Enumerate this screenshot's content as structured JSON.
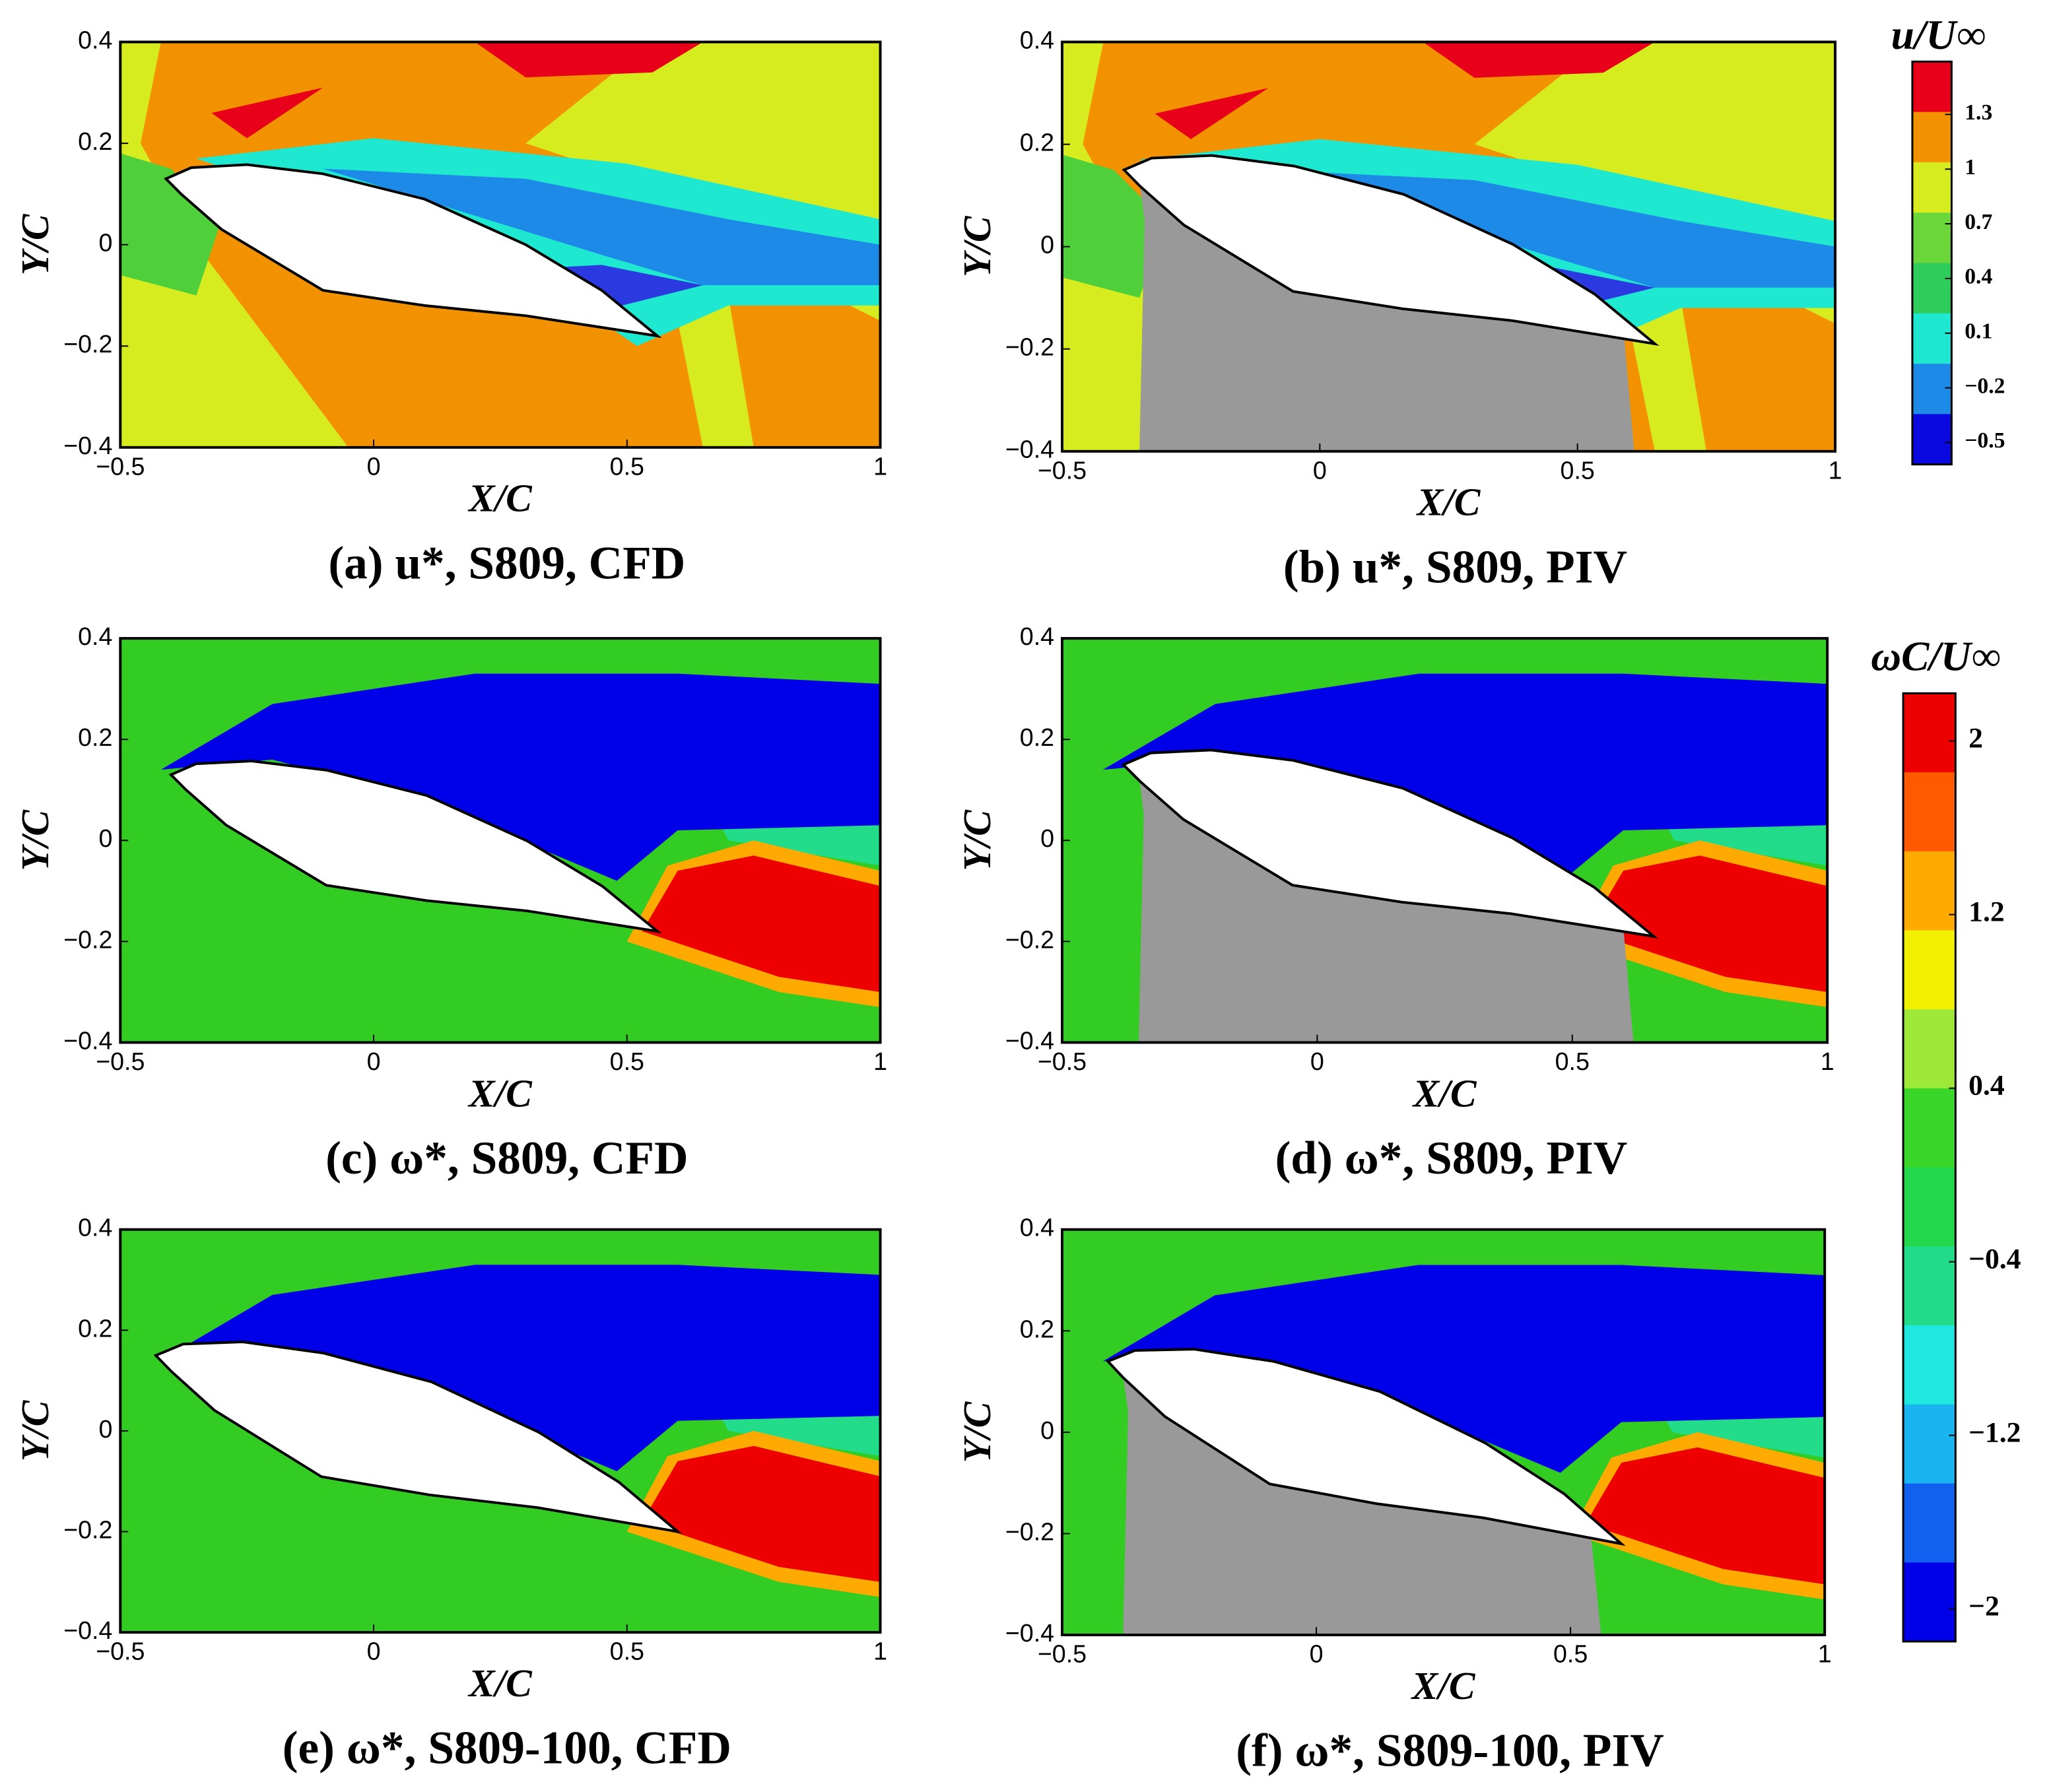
{
  "chart_data": [
    {
      "type": "contour",
      "title": "(a) u*, S809, CFD",
      "xlabel": "X/C",
      "ylabel": "Y/C",
      "xlim": [
        -0.5,
        1
      ],
      "ylim": [
        -0.4,
        0.4
      ],
      "xticks": [
        {
          "value": -0.5,
          "label": "−0.5"
        },
        0,
        0.5,
        1
      ],
      "yticks": [
        {
          "value": -0.4,
          "label": "−0.4"
        },
        {
          "value": -0.2,
          "label": "−0.2"
        },
        0,
        0.2,
        0.4
      ]
    },
    {
      "type": "contour",
      "title": "(b) u*, S809, PIV",
      "xlabel": "X/C",
      "ylabel": "Y/C",
      "xlim": [
        -0.5,
        1
      ],
      "ylim": [
        -0.4,
        0.4
      ],
      "xticks": [
        {
          "value": -0.5,
          "label": "−0.5"
        },
        0,
        0.5,
        1
      ],
      "yticks": [
        {
          "value": -0.4,
          "label": "−0.4"
        },
        {
          "value": -0.2,
          "label": "−0.2"
        },
        0,
        0.2,
        0.4
      ]
    },
    {
      "type": "contour",
      "title": "(c) ω*, S809, CFD",
      "xlabel": "X/C",
      "ylabel": "Y/C",
      "xlim": [
        -0.5,
        1
      ],
      "ylim": [
        -0.4,
        0.4
      ],
      "xticks": [
        {
          "value": -0.5,
          "label": "−0.5"
        },
        0,
        0.5,
        1
      ],
      "yticks": [
        {
          "value": -0.4,
          "label": "−0.4"
        },
        {
          "value": -0.2,
          "label": "−0.2"
        },
        0,
        0.2,
        0.4
      ]
    },
    {
      "type": "contour",
      "title": "(d) ω*, S809, PIV",
      "xlabel": "X/C",
      "ylabel": "Y/C",
      "xlim": [
        -0.5,
        1
      ],
      "ylim": [
        -0.4,
        0.4
      ],
      "xticks": [
        {
          "value": -0.5,
          "label": "−0.5"
        },
        0,
        0.5,
        1
      ],
      "yticks": [
        {
          "value": -0.4,
          "label": "−0.4"
        },
        {
          "value": -0.2,
          "label": "−0.2"
        },
        0,
        0.2,
        0.4
      ]
    },
    {
      "type": "contour",
      "title": "(e) ω*, S809-100, CFD",
      "xlabel": "X/C",
      "ylabel": "Y/C",
      "xlim": [
        -0.5,
        1
      ],
      "ylim": [
        -0.4,
        0.4
      ],
      "xticks": [
        {
          "value": -0.5,
          "label": "−0.5"
        },
        0,
        0.5,
        1
      ],
      "yticks": [
        {
          "value": -0.4,
          "label": "−0.4"
        },
        {
          "value": -0.2,
          "label": "−0.2"
        },
        0,
        0.2,
        0.4
      ]
    },
    {
      "type": "contour",
      "title": "(f) ω*, S809-100, PIV",
      "xlabel": "X/C",
      "ylabel": "Y/C",
      "xlim": [
        -0.5,
        1
      ],
      "ylim": [
        -0.4,
        0.4
      ],
      "xticks": [
        {
          "value": -0.5,
          "label": "−0.5"
        },
        0,
        0.5,
        1
      ],
      "yticks": [
        {
          "value": -0.4,
          "label": "−0.4"
        },
        {
          "value": -0.2,
          "label": "−0.2"
        },
        0,
        0.2,
        0.4
      ]
    },
    {
      "type": "colorbar",
      "title": "u/U∞",
      "ylim": [
        -0.62,
        1.59
      ],
      "yticks": [
        1.3,
        1,
        0.7,
        0.4,
        0.1,
        {
          "value": -0.2,
          "label": "−0.2"
        },
        {
          "value": -0.5,
          "label": "−0.5"
        }
      ],
      "colors": [
        "#e8001a",
        "#f39200",
        "#d7ec1f",
        "#6ad63a",
        "#2ecc5a",
        "#1ee8d0",
        "#1e8ae8",
        "#0a0ae0"
      ]
    },
    {
      "type": "colorbar",
      "title": "ωC/U∞",
      "ylim": [
        -2.15,
        2.22
      ],
      "yticks": [
        2,
        1.2,
        0.4,
        {
          "value": -0.4,
          "label": "−0.4"
        },
        {
          "value": -1.2,
          "label": "−1.2"
        },
        {
          "value": -2,
          "label": "−2"
        }
      ],
      "colors": [
        "#ee0000",
        "#ff5a00",
        "#ffaa00",
        "#f0f000",
        "#9ee83a",
        "#3ad62a",
        "#22d84a",
        "#22dc8a",
        "#1ee8e0",
        "#1ab4f0",
        "#1260f0",
        "#0000e8"
      ]
    }
  ]
}
